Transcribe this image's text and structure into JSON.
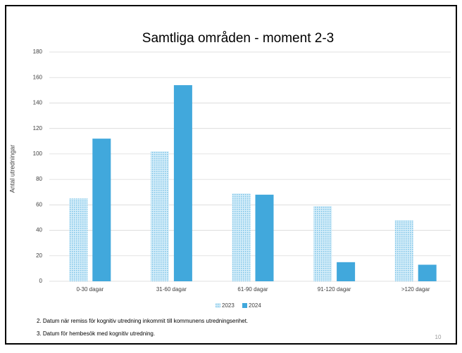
{
  "chart_data": {
    "type": "bar",
    "title": "Samtliga områden - moment 2-3",
    "y_label": "Antal utredningar",
    "categories": [
      "0-30 dagar",
      "31-60 dagar",
      "61-90 dagar",
      "91-120 dagar",
      ">120 dagar"
    ],
    "series": [
      {
        "name": "2023",
        "color": "#7cc3e8",
        "pattern": "dotted",
        "values": [
          65,
          102,
          69,
          59,
          48
        ]
      },
      {
        "name": "2024",
        "color": "#41a8dc",
        "values": [
          112,
          154,
          68,
          15,
          13
        ]
      }
    ],
    "ylim": [
      0,
      180
    ],
    "yticks": [
      0,
      20,
      40,
      60,
      80,
      100,
      120,
      140,
      160,
      180
    ],
    "grid": true,
    "legend": "bottom"
  },
  "footnotes": [
    "2. Datum när remiss för kognitiv utredning inkommit till kommunens utredningsenhet.",
    "3. Datum för hembesök med kognitiv utredning."
  ],
  "page_number": 10
}
